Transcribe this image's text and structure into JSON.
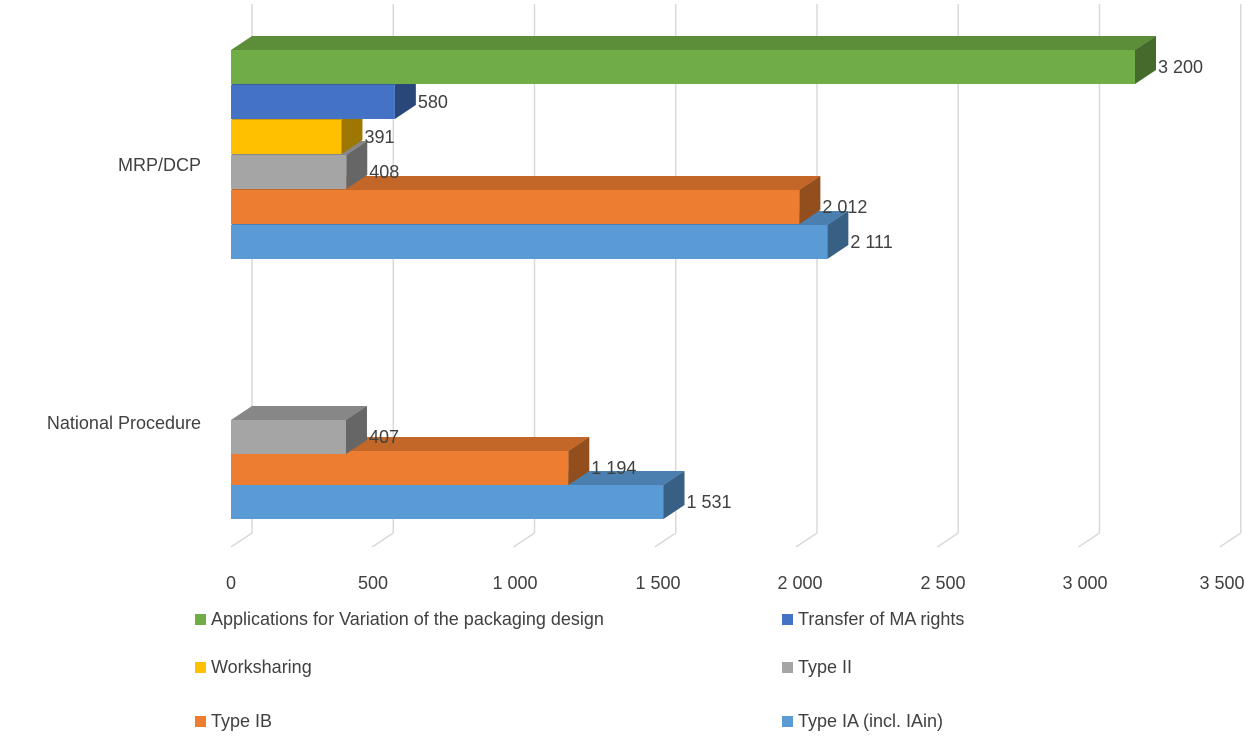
{
  "chart_data": {
    "type": "bar",
    "orientation": "horizontal",
    "style": "3d",
    "categories": [
      "MRP/DCP",
      "National Procedure"
    ],
    "x_ticks": [
      "0",
      "500",
      "1 000",
      "1 500",
      "2 000",
      "2 500",
      "3 000",
      "3 500"
    ],
    "xlim": [
      0,
      3500
    ],
    "grid": true,
    "legend_position": "bottom",
    "series": [
      {
        "name": "Applications for Variation of the packaging design",
        "color": "#70AD47",
        "values": [
          3200,
          null
        ],
        "labels": [
          "3 200",
          ""
        ]
      },
      {
        "name": "Transfer of MA rights",
        "color": "#4472C4",
        "values": [
          580,
          null
        ],
        "labels": [
          "580",
          ""
        ]
      },
      {
        "name": "Worksharing",
        "color": "#FFC000",
        "values": [
          391,
          null
        ],
        "labels": [
          "391",
          ""
        ]
      },
      {
        "name": "Type II",
        "color": "#A5A5A5",
        "values": [
          408,
          407
        ],
        "labels": [
          "408",
          "407"
        ]
      },
      {
        "name": "Type IB",
        "color": "#ED7D31",
        "values": [
          2012,
          1194
        ],
        "labels": [
          "2 012",
          "1 194"
        ]
      },
      {
        "name": "Type IA (incl. IAin)",
        "color": "#5B9BD5",
        "values": [
          2111,
          1531
        ],
        "labels": [
          "2 111",
          "1 531"
        ]
      }
    ]
  }
}
